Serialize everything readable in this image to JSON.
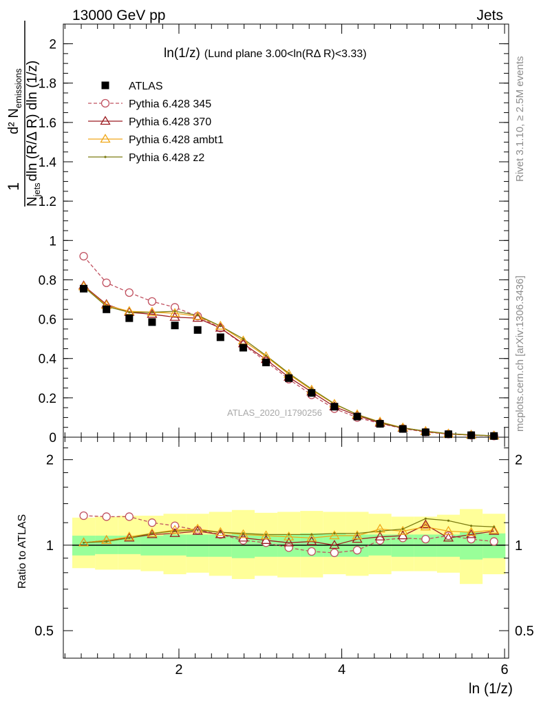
{
  "header": {
    "left": "13000 GeV pp",
    "right": "Jets"
  },
  "side_text": {
    "rivet": "Rivet 3.1.10, ≥ 2.5M events",
    "mcplots": "mcplots.cern.ch [arXiv:1306.3436]"
  },
  "plot_label": {
    "main": "ln(1/z)",
    "rest": "(Lund plane 3.00<ln(RΔ R)<3.33)"
  },
  "ylabel": {
    "one": "1",
    "den_n": "N",
    "den_sub": "jets",
    "den_rest": "dln (R/Δ R) dln (1/z)",
    "num": "d² N",
    "num_sub": "emissions"
  },
  "ratio_ylabel": "Ratio to ATLAS",
  "xlabel": "ln (1/z)",
  "watermark": "ATLAS_2020_I1790256",
  "legend": [
    {
      "label": "ATLAS",
      "color": "#000000",
      "marker": "square",
      "dash": false
    },
    {
      "label": "Pythia 6.428 345",
      "color": "#c0505f",
      "marker": "circle",
      "dash": true
    },
    {
      "label": "Pythia 6.428 370",
      "color": "#9b1b20",
      "marker": "triangle",
      "dash": false
    },
    {
      "label": "Pythia 6.428 ambt1",
      "color": "#f0a81a",
      "marker": "triangle",
      "dash": false
    },
    {
      "label": "Pythia 6.428 z2",
      "color": "#7a7a10",
      "marker": "dot",
      "dash": false
    }
  ],
  "chart_data": {
    "type": "line",
    "xlim": [
      0.58,
      6.05
    ],
    "main_ylim": [
      0,
      2.1
    ],
    "ratio_ylim": [
      0.4,
      2.4
    ],
    "main_yticks": [
      "0",
      "0.2",
      "0.4",
      "0.6",
      "0.8",
      "1",
      "1.2",
      "1.4",
      "1.6",
      "1.8",
      "2"
    ],
    "main_yticks_values": [
      0,
      0.2,
      0.4,
      0.6,
      0.8,
      1.0,
      1.2,
      1.4,
      1.6,
      1.8,
      2.0
    ],
    "xticks": [
      "2",
      "4",
      "6"
    ],
    "xticks_values": [
      2,
      4,
      6
    ],
    "ratio_yticks": [
      "0.5",
      "1",
      "2"
    ],
    "ratio_yticks_values": [
      0.5,
      1,
      2
    ],
    "x": [
      0.83,
      1.11,
      1.39,
      1.67,
      1.95,
      2.23,
      2.51,
      2.79,
      3.07,
      3.35,
      3.63,
      3.91,
      4.19,
      4.47,
      4.75,
      5.03,
      5.31,
      5.59,
      5.87
    ],
    "bin_edges": [
      0.69,
      0.97,
      1.25,
      1.53,
      1.81,
      2.09,
      2.37,
      2.65,
      2.93,
      3.21,
      3.49,
      3.77,
      4.05,
      4.33,
      4.61,
      4.89,
      5.17,
      5.45,
      5.73,
      6.01
    ],
    "series": [
      {
        "name": "ATLAS",
        "values": [
          0.755,
          0.65,
          0.605,
          0.585,
          0.568,
          0.545,
          0.508,
          0.455,
          0.38,
          0.3,
          0.225,
          0.155,
          0.105,
          0.068,
          0.042,
          0.025,
          0.015,
          0.01,
          0.006
        ]
      },
      {
        "name": "Pythia 6.428 345",
        "values": [
          0.92,
          0.785,
          0.735,
          0.69,
          0.66,
          0.615,
          0.555,
          0.47,
          0.385,
          0.295,
          0.215,
          0.145,
          0.1,
          0.07,
          0.044,
          0.026,
          0.016,
          0.01,
          0.006
        ]
      },
      {
        "name": "Pythia 6.428 370",
        "values": [
          0.77,
          0.675,
          0.635,
          0.625,
          0.61,
          0.605,
          0.555,
          0.475,
          0.395,
          0.305,
          0.23,
          0.155,
          0.11,
          0.072,
          0.046,
          0.029,
          0.016,
          0.011,
          0.007
        ]
      },
      {
        "name": "Pythia 6.428 ambt1",
        "values": [
          0.765,
          0.67,
          0.64,
          0.635,
          0.63,
          0.615,
          0.565,
          0.49,
          0.41,
          0.32,
          0.24,
          0.168,
          0.115,
          0.078,
          0.048,
          0.03,
          0.017,
          0.011,
          0.007
        ]
      },
      {
        "name": "Pythia 6.428 z2",
        "values": [
          0.765,
          0.665,
          0.635,
          0.635,
          0.64,
          0.62,
          0.565,
          0.5,
          0.415,
          0.325,
          0.245,
          0.17,
          0.115,
          0.076,
          0.047,
          0.031,
          0.018,
          0.012,
          0.007
        ]
      }
    ],
    "ratio_series": [
      {
        "name": "Pythia 6.428 345",
        "values": [
          1.27,
          1.26,
          1.26,
          1.2,
          1.17,
          1.13,
          1.09,
          1.04,
          1.02,
          0.98,
          0.95,
          0.94,
          0.96,
          1.04,
          1.06,
          1.05,
          1.08,
          1.05,
          1.03
        ]
      },
      {
        "name": "Pythia 6.428 370",
        "values": [
          1.02,
          1.04,
          1.06,
          1.09,
          1.1,
          1.12,
          1.09,
          1.06,
          1.04,
          1.02,
          1.03,
          1.0,
          1.05,
          1.07,
          1.08,
          1.18,
          1.06,
          1.09,
          1.12
        ]
      },
      {
        "name": "Pythia 6.428 ambt1",
        "values": [
          1.02,
          1.04,
          1.07,
          1.1,
          1.13,
          1.14,
          1.11,
          1.09,
          1.08,
          1.07,
          1.06,
          1.08,
          1.08,
          1.14,
          1.12,
          1.16,
          1.12,
          1.11,
          1.13
        ]
      },
      {
        "name": "Pythia 6.428 z2",
        "values": [
          1.02,
          1.03,
          1.06,
          1.1,
          1.12,
          1.13,
          1.11,
          1.1,
          1.09,
          1.09,
          1.09,
          1.1,
          1.1,
          1.12,
          1.14,
          1.24,
          1.22,
          1.17,
          1.16
        ]
      }
    ],
    "ratio_band_inner": [
      [
        0.92,
        1.08
      ],
      [
        0.93,
        1.08
      ],
      [
        0.93,
        1.08
      ],
      [
        0.92,
        1.08
      ],
      [
        0.92,
        1.09
      ],
      [
        0.91,
        1.09
      ],
      [
        0.91,
        1.09
      ],
      [
        0.9,
        1.1
      ],
      [
        0.91,
        1.09
      ],
      [
        0.91,
        1.09
      ],
      [
        0.91,
        1.1
      ],
      [
        0.91,
        1.1
      ],
      [
        0.91,
        1.09
      ],
      [
        0.92,
        1.09
      ],
      [
        0.91,
        1.09
      ],
      [
        0.91,
        1.09
      ],
      [
        0.91,
        1.09
      ],
      [
        0.89,
        1.11
      ],
      [
        0.9,
        1.1
      ]
    ],
    "ratio_band_outer": [
      [
        0.83,
        1.25
      ],
      [
        0.82,
        1.26
      ],
      [
        0.82,
        1.27
      ],
      [
        0.81,
        1.27
      ],
      [
        0.79,
        1.29
      ],
      [
        0.8,
        1.29
      ],
      [
        0.78,
        1.31
      ],
      [
        0.76,
        1.33
      ],
      [
        0.78,
        1.3
      ],
      [
        0.77,
        1.31
      ],
      [
        0.77,
        1.32
      ],
      [
        0.79,
        1.31
      ],
      [
        0.78,
        1.31
      ],
      [
        0.79,
        1.29
      ],
      [
        0.81,
        1.26
      ],
      [
        0.81,
        1.26
      ],
      [
        0.8,
        1.28
      ],
      [
        0.73,
        1.34
      ],
      [
        0.79,
        1.29
      ]
    ]
  }
}
